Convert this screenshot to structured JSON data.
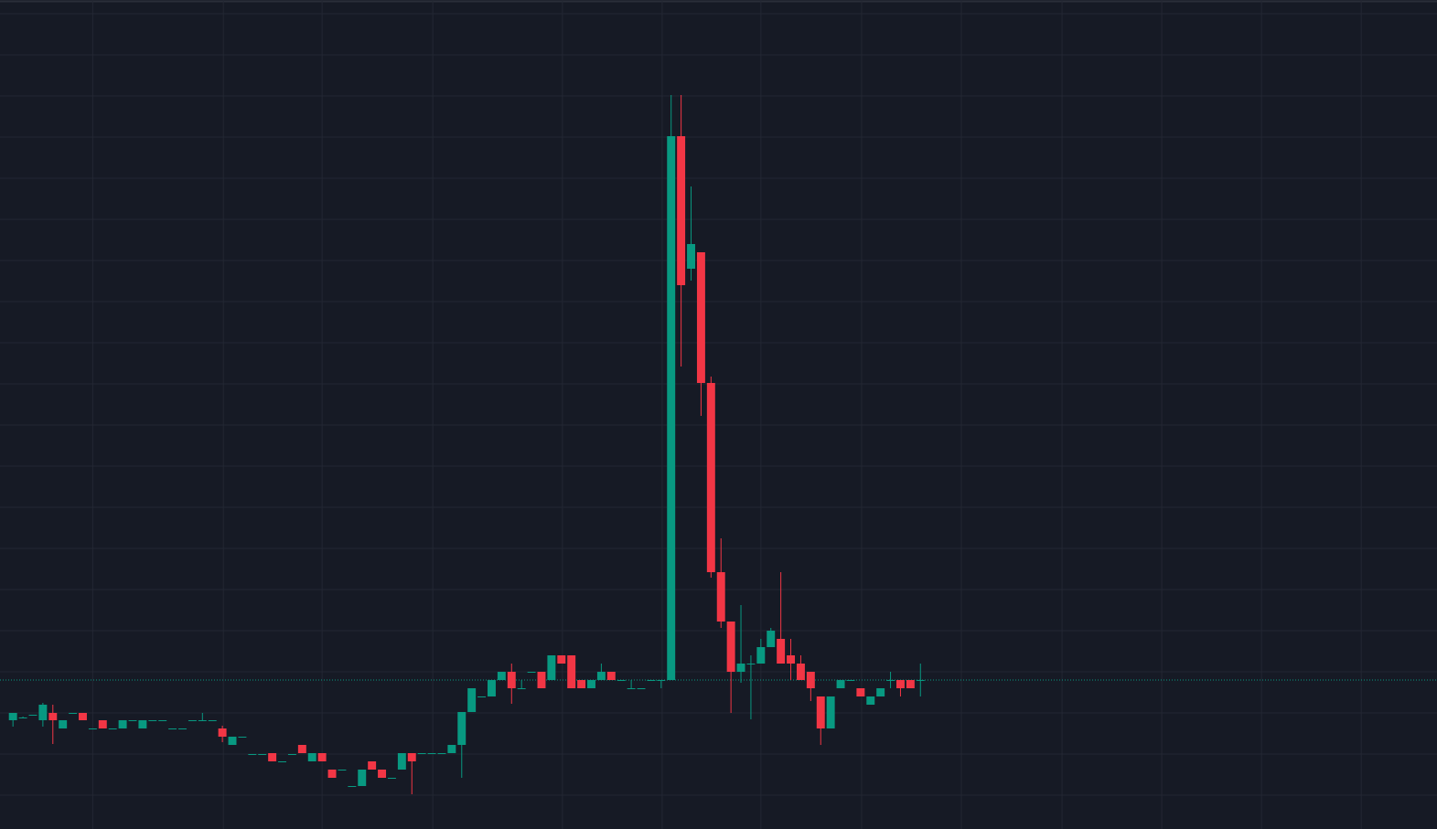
{
  "chart_data": {
    "type": "candlestick",
    "x": [
      0,
      1,
      2,
      3,
      4,
      5,
      6,
      7,
      8,
      9,
      10,
      11,
      12,
      13,
      14,
      15,
      16,
      17,
      18,
      19,
      20,
      21,
      22,
      23,
      24,
      25,
      26,
      27,
      28,
      29,
      30,
      31,
      32,
      33,
      34,
      35,
      36,
      37,
      38,
      39,
      40,
      41,
      42,
      43,
      44,
      45,
      46,
      47,
      48,
      49,
      50,
      51,
      52,
      53,
      54,
      55,
      56,
      57,
      58,
      59,
      60,
      61,
      62,
      63,
      64,
      65,
      66,
      67,
      68,
      69,
      70,
      71,
      72,
      73,
      74,
      75,
      76,
      77,
      78,
      79,
      80,
      81,
      82,
      83,
      84,
      85,
      86,
      87,
      88,
      89,
      90,
      91
    ],
    "open": [
      119,
      122,
      125,
      119,
      127,
      110,
      127,
      127,
      110,
      119,
      110,
      110,
      119,
      110,
      119,
      119,
      110,
      110,
      119,
      119,
      119,
      110,
      92,
      101,
      82,
      82,
      83,
      74,
      82,
      92,
      74,
      83,
      65,
      65,
      47,
      47,
      74,
      65,
      56,
      65,
      83,
      83,
      83,
      83,
      83,
      92,
      128,
      145,
      145,
      163,
      172,
      154,
      172,
      172,
      163,
      190,
      190,
      163,
      154,
      163,
      172,
      163,
      154,
      154,
      163,
      163,
      163,
      758,
      613,
      631,
      488,
      281,
      227,
      172,
      181,
      181,
      199,
      208,
      190,
      181,
      172,
      145,
      110,
      154,
      163,
      154,
      136,
      145,
      163,
      163,
      163,
      163
    ],
    "high": [
      127,
      123,
      125,
      138,
      136,
      119,
      127,
      127,
      110,
      119,
      110,
      119,
      119,
      119,
      119,
      119,
      110,
      110,
      119,
      127,
      119,
      113,
      101,
      101,
      82,
      82,
      83,
      74,
      82,
      92,
      83,
      83,
      65,
      65,
      47,
      65,
      74,
      65,
      56,
      83,
      83,
      83,
      83,
      83,
      92,
      128,
      154,
      145,
      163,
      172,
      181,
      163,
      172,
      172,
      190,
      190,
      190,
      163,
      163,
      181,
      172,
      163,
      163,
      154,
      163,
      163,
      803,
      803,
      703,
      631,
      495,
      318,
      227,
      245,
      190,
      208,
      220,
      281,
      208,
      190,
      172,
      145,
      145,
      163,
      163,
      154,
      145,
      154,
      172,
      163,
      163,
      181
    ],
    "low": [
      112,
      121,
      125,
      112,
      93,
      110,
      127,
      119,
      110,
      110,
      110,
      110,
      119,
      110,
      119,
      119,
      110,
      110,
      119,
      119,
      119,
      95,
      92,
      101,
      82,
      82,
      74,
      74,
      82,
      83,
      74,
      74,
      56,
      65,
      47,
      47,
      65,
      56,
      56,
      65,
      38,
      83,
      83,
      83,
      83,
      56,
      128,
      145,
      145,
      163,
      137,
      154,
      172,
      154,
      163,
      181,
      154,
      154,
      154,
      163,
      163,
      163,
      154,
      154,
      163,
      154,
      163,
      506,
      600,
      452,
      275,
      220,
      127,
      160,
      120,
      181,
      199,
      181,
      163,
      163,
      140,
      92,
      110,
      154,
      163,
      145,
      136,
      145,
      154,
      145,
      154,
      145
    ],
    "close": [
      127,
      122,
      125,
      136,
      119,
      119,
      127,
      119,
      110,
      110,
      110,
      119,
      119,
      119,
      119,
      119,
      110,
      110,
      119,
      119,
      119,
      101,
      101,
      101,
      82,
      82,
      74,
      74,
      82,
      83,
      83,
      74,
      56,
      65,
      47,
      65,
      65,
      56,
      56,
      83,
      74,
      83,
      83,
      83,
      92,
      128,
      154,
      145,
      163,
      172,
      154,
      154,
      172,
      154,
      190,
      181,
      154,
      154,
      163,
      172,
      163,
      163,
      154,
      154,
      163,
      163,
      758,
      595,
      640,
      488,
      281,
      227,
      172,
      181,
      181,
      199,
      217,
      181,
      181,
      163,
      154,
      110,
      145,
      163,
      163,
      145,
      145,
      154,
      163,
      154,
      154,
      163
    ],
    "up_color": "#089981",
    "down_color": "#f23645",
    "last_price": 163,
    "xlim": [
      -1.3,
      142.8
    ],
    "ylim": [
      0,
      907
    ],
    "xticks": [
      8,
      21.1,
      31,
      42.1,
      55.1,
      65.1,
      75,
      85.1,
      95.1,
      105.2,
      115.2,
      125.2,
      135.2
    ],
    "yticks": [
      37,
      82,
      127,
      172,
      217,
      262,
      307,
      352,
      397,
      442,
      487,
      532,
      577,
      622,
      667,
      712,
      757,
      802,
      847,
      892
    ],
    "grid": true
  }
}
